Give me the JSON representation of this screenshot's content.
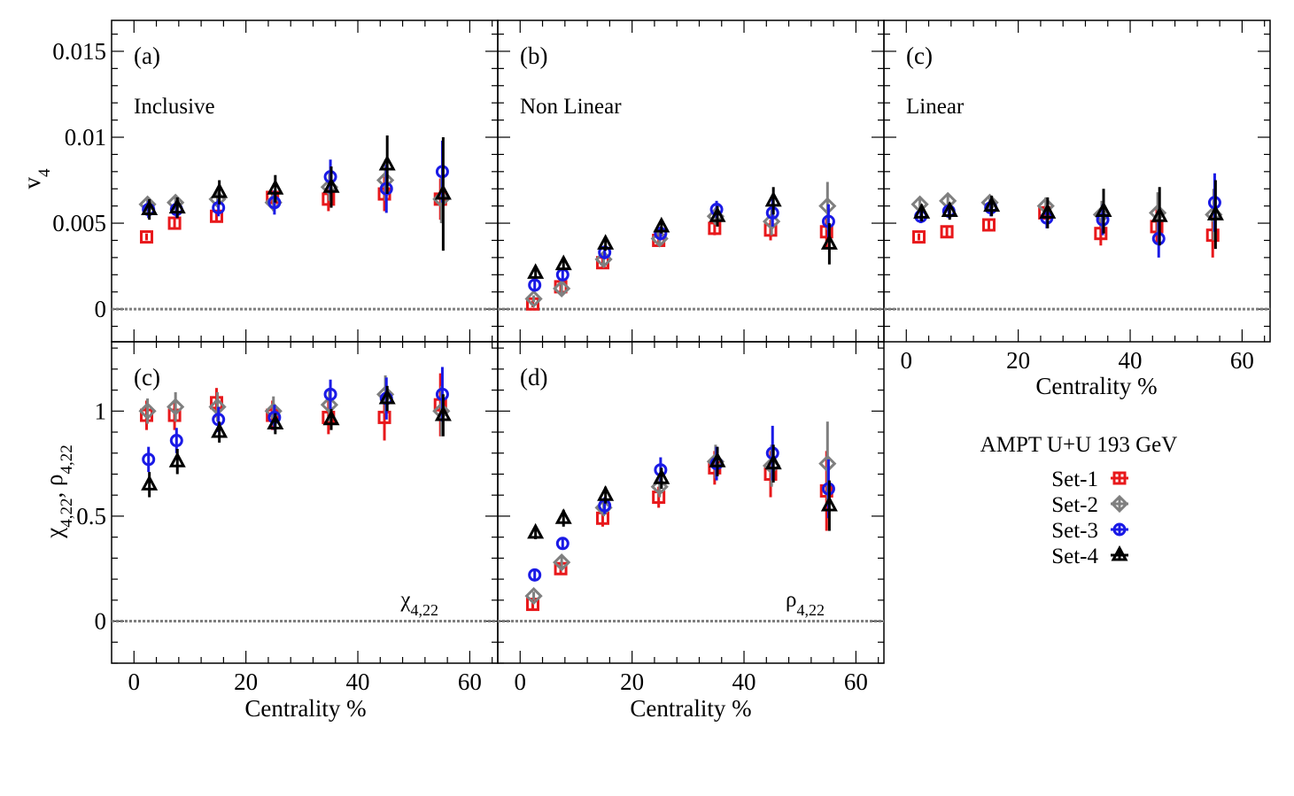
{
  "colors": {
    "Set-1": "#e8181b",
    "Set-2": "#7f7f7f",
    "Set-3": "#1a1ae6",
    "Set-4": "#000000",
    "zero_line": "#7f7f7f"
  },
  "legend": {
    "title": "AMPT U+U 193 GeV",
    "entries": [
      {
        "label": "Set-1",
        "marker": "square"
      },
      {
        "label": "Set-2",
        "marker": "diamond"
      },
      {
        "label": "Set-3",
        "marker": "circle"
      },
      {
        "label": "Set-4",
        "marker": "triangle"
      }
    ]
  },
  "axis_labels": {
    "top_y": "v",
    "top_y_sub": "4",
    "bottom_y_chi": "χ",
    "bottom_y_sub": "4,22",
    "bottom_y_sep": ", ",
    "bottom_y_rho": "ρ",
    "x": "Centrality %"
  },
  "chart_data": [
    {
      "type": "scatter",
      "panel": "a",
      "tag": "(a)",
      "title": "Inclusive",
      "xlim": [
        -4,
        65
      ],
      "ylim": [
        -0.0019,
        0.0168
      ],
      "xticks": [],
      "yticks": [
        {
          "v": 0,
          "t": "0"
        },
        {
          "v": 0.005,
          "t": "0.005"
        },
        {
          "v": 0.01,
          "t": "0.01"
        },
        {
          "v": 0.015,
          "t": "0.015"
        }
      ],
      "series": [
        {
          "name": "Set-1",
          "x": [
            2.5,
            7.5,
            15,
            25,
            35,
            45,
            55
          ],
          "y": [
            0.0042,
            0.005,
            0.0054,
            0.0065,
            0.0064,
            0.0067,
            0.0064
          ],
          "err": [
            0.0002,
            0.0003,
            0.0003,
            0.0004,
            0.0007,
            0.001,
            0.0012
          ]
        },
        {
          "name": "Set-2",
          "x": [
            2.5,
            7.5,
            15,
            25,
            35,
            45,
            55
          ],
          "y": [
            0.0061,
            0.0062,
            0.0064,
            0.0062,
            0.0071,
            0.0075,
            0.0064
          ],
          "err": [
            0.0003,
            0.0003,
            0.0004,
            0.0005,
            0.0008,
            0.0012,
            0.0014
          ]
        },
        {
          "name": "Set-3",
          "x": [
            2.5,
            7.5,
            15,
            25,
            35,
            45,
            55
          ],
          "y": [
            0.0058,
            0.0058,
            0.0059,
            0.0062,
            0.0077,
            0.007,
            0.008
          ],
          "err": [
            0.0005,
            0.0005,
            0.0005,
            0.0007,
            0.001,
            0.0014,
            0.0018
          ]
        },
        {
          "name": "Set-4",
          "x": [
            2.5,
            7.5,
            15,
            25,
            35,
            45,
            55
          ],
          "y": [
            0.0058,
            0.0059,
            0.0068,
            0.007,
            0.0071,
            0.0084,
            0.0067
          ],
          "err": [
            0.0006,
            0.0006,
            0.0007,
            0.0008,
            0.0012,
            0.0017,
            0.0033
          ]
        }
      ]
    },
    {
      "type": "scatter",
      "panel": "b",
      "tag": "(b)",
      "title": "Non Linear",
      "xlim": [
        -4,
        65
      ],
      "ylim": [
        -0.0019,
        0.0168
      ],
      "xticks": [],
      "yticks": [],
      "series": [
        {
          "name": "Set-1",
          "x": [
            2.5,
            7.5,
            15,
            25,
            35,
            45,
            55
          ],
          "y": [
            0.0003,
            0.0013,
            0.0027,
            0.004,
            0.0047,
            0.0046,
            0.0045
          ],
          "err": [
            0.0002,
            0.0003,
            0.0003,
            0.0003,
            0.0004,
            0.0006,
            0.0009
          ]
        },
        {
          "name": "Set-2",
          "x": [
            2.5,
            7.5,
            15,
            25,
            35,
            45,
            55
          ],
          "y": [
            0.0006,
            0.0012,
            0.0029,
            0.0041,
            0.0054,
            0.0051,
            0.006
          ],
          "err": [
            0.0002,
            0.0003,
            0.0003,
            0.0004,
            0.0005,
            0.0008,
            0.0014
          ]
        },
        {
          "name": "Set-3",
          "x": [
            2.5,
            7.5,
            15,
            25,
            35,
            45,
            55
          ],
          "y": [
            0.0014,
            0.002,
            0.0033,
            0.0044,
            0.0058,
            0.0056,
            0.0051
          ],
          "err": [
            0.0003,
            0.0003,
            0.0004,
            0.0004,
            0.0005,
            0.0008,
            0.001
          ]
        },
        {
          "name": "Set-4",
          "x": [
            2.5,
            7.5,
            15,
            25,
            35,
            45,
            55
          ],
          "y": [
            0.0021,
            0.0026,
            0.0038,
            0.0048,
            0.0054,
            0.0063,
            0.0038
          ],
          "err": [
            0.0003,
            0.0003,
            0.0004,
            0.0004,
            0.0006,
            0.0008,
            0.0012
          ]
        }
      ]
    },
    {
      "type": "scatter",
      "panel": "c",
      "tag": "(c)",
      "title": "Linear",
      "xlim": [
        -4,
        65
      ],
      "ylim": [
        -0.0019,
        0.0168
      ],
      "xticks": [
        {
          "v": 0,
          "t": "0"
        },
        {
          "v": 20,
          "t": "20"
        },
        {
          "v": 40,
          "t": "40"
        },
        {
          "v": 60,
          "t": "60"
        }
      ],
      "yticks": [],
      "series": [
        {
          "name": "Set-1",
          "x": [
            2.5,
            7.5,
            15,
            25,
            35,
            45,
            55
          ],
          "y": [
            0.0042,
            0.0045,
            0.0049,
            0.0056,
            0.0044,
            0.0048,
            0.0043
          ],
          "err": [
            0.0002,
            0.0003,
            0.0003,
            0.0004,
            0.0007,
            0.001,
            0.0013
          ]
        },
        {
          "name": "Set-2",
          "x": [
            2.5,
            7.5,
            15,
            25,
            35,
            45,
            55
          ],
          "y": [
            0.0061,
            0.0063,
            0.0062,
            0.006,
            0.0055,
            0.0056,
            0.0055
          ],
          "err": [
            0.0003,
            0.0003,
            0.0004,
            0.0005,
            0.0008,
            0.0012,
            0.0015
          ]
        },
        {
          "name": "Set-3",
          "x": [
            2.5,
            7.5,
            15,
            25,
            35,
            45,
            55
          ],
          "y": [
            0.0054,
            0.0057,
            0.0059,
            0.0053,
            0.0052,
            0.0041,
            0.0062
          ],
          "err": [
            0.0004,
            0.0004,
            0.0005,
            0.0006,
            0.0009,
            0.0011,
            0.0017
          ]
        },
        {
          "name": "Set-4",
          "x": [
            2.5,
            7.5,
            15,
            25,
            35,
            45,
            55
          ],
          "y": [
            0.0056,
            0.0057,
            0.006,
            0.0056,
            0.0057,
            0.0054,
            0.0055
          ],
          "err": [
            0.0005,
            0.0005,
            0.0006,
            0.0009,
            0.0013,
            0.0017,
            0.002
          ]
        }
      ]
    },
    {
      "type": "scatter",
      "panel": "c-lower",
      "tag": "(c)",
      "title": "",
      "annotation_main": "χ",
      "annotation_sub": "4,22",
      "xlim": [
        -4,
        65
      ],
      "ylim": [
        -0.2,
        1.33
      ],
      "xticks": [
        {
          "v": 0,
          "t": "0"
        },
        {
          "v": 20,
          "t": "20"
        },
        {
          "v": 40,
          "t": "40"
        },
        {
          "v": 60,
          "t": "60"
        }
      ],
      "yticks": [
        {
          "v": 0,
          "t": "0"
        },
        {
          "v": 0.5,
          "t": "0.5"
        },
        {
          "v": 1,
          "t": "1"
        }
      ],
      "series": [
        {
          "name": "Set-1",
          "x": [
            2.5,
            7.5,
            15,
            25,
            35,
            45,
            55
          ],
          "y": [
            0.98,
            0.98,
            1.04,
            0.98,
            0.97,
            0.97,
            1.03
          ],
          "err": [
            0.07,
            0.07,
            0.07,
            0.07,
            0.08,
            0.11,
            0.15
          ]
        },
        {
          "name": "Set-2",
          "x": [
            2.5,
            7.5,
            15,
            25,
            35,
            45,
            55
          ],
          "y": [
            1.0,
            1.02,
            1.02,
            1.0,
            1.03,
            1.08,
            1.0
          ],
          "err": [
            0.06,
            0.07,
            0.07,
            0.07,
            0.08,
            0.09,
            0.12
          ]
        },
        {
          "name": "Set-3",
          "x": [
            2.5,
            7.5,
            15,
            25,
            35,
            45,
            55
          ],
          "y": [
            0.77,
            0.86,
            0.96,
            0.97,
            1.08,
            1.06,
            1.08
          ],
          "err": [
            0.06,
            0.06,
            0.06,
            0.06,
            0.07,
            0.1,
            0.13
          ]
        },
        {
          "name": "Set-4",
          "x": [
            2.5,
            7.5,
            15,
            25,
            35,
            45,
            55
          ],
          "y": [
            0.65,
            0.76,
            0.9,
            0.94,
            0.96,
            1.06,
            0.98
          ],
          "err": [
            0.06,
            0.06,
            0.05,
            0.05,
            0.05,
            0.06,
            0.1
          ]
        }
      ]
    },
    {
      "type": "scatter",
      "panel": "d",
      "tag": "(d)",
      "title": "",
      "annotation_main": "ρ",
      "annotation_sub": "4,22",
      "xlim": [
        -4,
        65
      ],
      "ylim": [
        -0.2,
        1.33
      ],
      "xticks": [
        {
          "v": 0,
          "t": "0"
        },
        {
          "v": 20,
          "t": "20"
        },
        {
          "v": 40,
          "t": "40"
        },
        {
          "v": 60,
          "t": "60"
        }
      ],
      "yticks": [],
      "series": [
        {
          "name": "Set-1",
          "x": [
            2.5,
            7.5,
            15,
            25,
            35,
            45,
            55
          ],
          "y": [
            0.08,
            0.25,
            0.49,
            0.59,
            0.73,
            0.7,
            0.62
          ],
          "err": [
            0.02,
            0.03,
            0.04,
            0.05,
            0.08,
            0.11,
            0.19
          ]
        },
        {
          "name": "Set-2",
          "x": [
            2.5,
            7.5,
            15,
            25,
            35,
            45,
            55
          ],
          "y": [
            0.12,
            0.28,
            0.54,
            0.64,
            0.76,
            0.74,
            0.75
          ],
          "err": [
            0.02,
            0.03,
            0.04,
            0.05,
            0.08,
            0.1,
            0.2
          ]
        },
        {
          "name": "Set-3",
          "x": [
            2.5,
            7.5,
            15,
            25,
            35,
            45,
            55
          ],
          "y": [
            0.22,
            0.37,
            0.55,
            0.72,
            0.75,
            0.8,
            0.63
          ],
          "err": [
            0.02,
            0.03,
            0.04,
            0.06,
            0.08,
            0.13,
            0.14
          ]
        },
        {
          "name": "Set-4",
          "x": [
            2.5,
            7.5,
            15,
            25,
            35,
            45,
            55
          ],
          "y": [
            0.42,
            0.49,
            0.6,
            0.68,
            0.76,
            0.75,
            0.55
          ],
          "err": [
            0.03,
            0.04,
            0.04,
            0.05,
            0.07,
            0.09,
            0.12
          ]
        }
      ]
    }
  ]
}
